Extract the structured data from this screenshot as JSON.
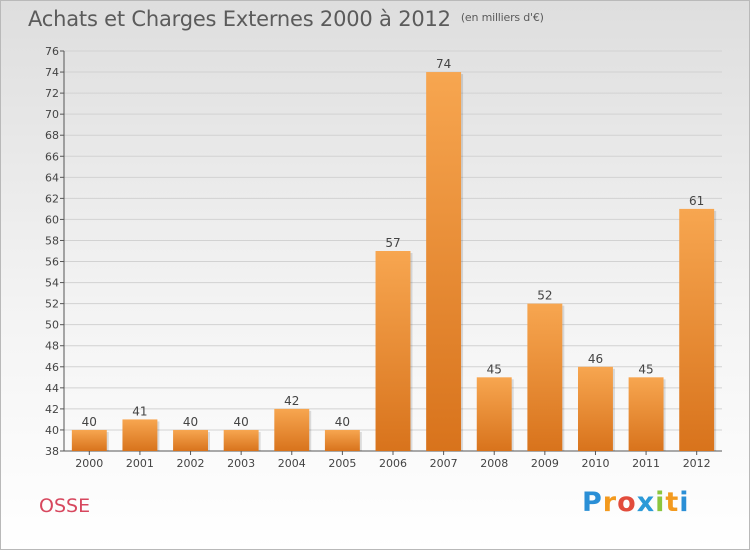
{
  "title": "Achats et Charges Externes 2000 à 2012",
  "title_unit": "(en milliers d'€)",
  "city": "OSSE",
  "logo": {
    "letters": [
      "P",
      "r",
      "o",
      "x",
      "i",
      "t",
      "i"
    ],
    "colors": [
      "#2a8fd6",
      "#f39a1e",
      "#e24c3c",
      "#2b9ad8",
      "#8cc63e",
      "#f39a1e",
      "#2a8fd6"
    ]
  },
  "chart_data": {
    "type": "bar",
    "categories": [
      "2000",
      "2001",
      "2002",
      "2003",
      "2004",
      "2005",
      "2006",
      "2007",
      "2008",
      "2009",
      "2010",
      "2011",
      "2012"
    ],
    "values": [
      40,
      41,
      40,
      40,
      42,
      40,
      57,
      74,
      45,
      52,
      46,
      45,
      61
    ],
    "ylim": [
      38,
      76
    ],
    "yticks": [
      38,
      40,
      42,
      44,
      46,
      48,
      50,
      52,
      54,
      56,
      58,
      60,
      62,
      64,
      66,
      68,
      70,
      72,
      74,
      76
    ],
    "grid": true,
    "data_labels": true,
    "bar_color": "#ee8a2e"
  }
}
